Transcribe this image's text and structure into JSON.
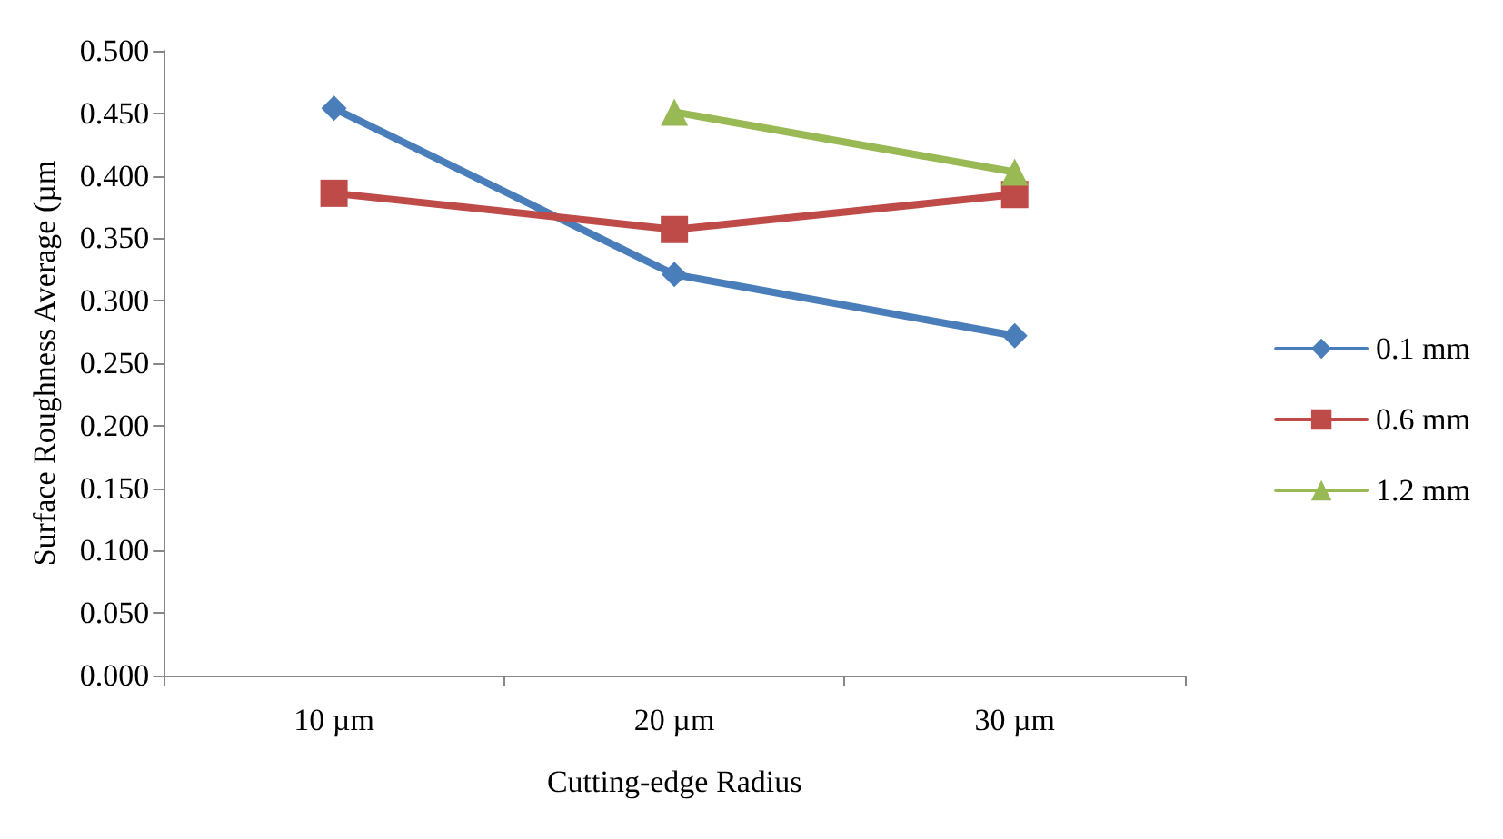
{
  "chart_data": {
    "type": "line",
    "xlabel": "Cutting-edge Radius",
    "ylabel": "Surface Roughness Average (µm",
    "categories": [
      "10 µm",
      "20 µm",
      "30 µm"
    ],
    "series": [
      {
        "name": "0.1 mm",
        "color": "#4a7ebb",
        "marker": "diamond",
        "values": [
          0.454,
          0.321,
          0.272
        ]
      },
      {
        "name": "0.6 mm",
        "color": "#be4b48",
        "marker": "square",
        "values": [
          0.386,
          0.357,
          0.385
        ]
      },
      {
        "name": "1.2 mm",
        "color": "#98b954",
        "marker": "triangle",
        "values": [
          null,
          0.451,
          0.403
        ]
      }
    ],
    "ylim": [
      0,
      0.5
    ],
    "yticks": [
      {
        "value": 0,
        "label": "0.000"
      },
      {
        "value": 0.05,
        "label": "0.050"
      },
      {
        "value": 0.1,
        "label": "0.100"
      },
      {
        "value": 0.15,
        "label": "0.150"
      },
      {
        "value": 0.2,
        "label": "0.200"
      },
      {
        "value": 0.25,
        "label": "0.250"
      },
      {
        "value": 0.3,
        "label": "0.300"
      },
      {
        "value": 0.35,
        "label": "0.350"
      },
      {
        "value": 0.4,
        "label": "0.400"
      },
      {
        "value": 0.45,
        "label": "0.450"
      },
      {
        "value": 0.5,
        "label": "0.500"
      }
    ],
    "grid": false,
    "legend": "right"
  }
}
